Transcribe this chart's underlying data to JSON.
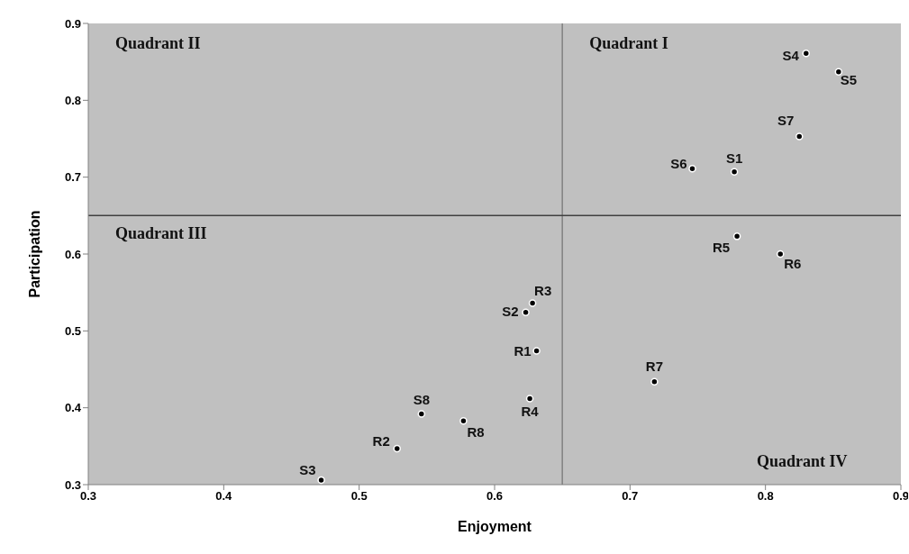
{
  "chart_data": {
    "type": "scatter",
    "xlabel": "Enjoyment",
    "ylabel": "Participation",
    "xlim": [
      0.3,
      0.9
    ],
    "xticks": [
      0.3,
      0.4,
      0.5,
      0.6,
      0.7,
      0.8,
      0.9
    ],
    "ylim": [
      0.3,
      0.9
    ],
    "yticks": [
      0.3,
      0.4,
      0.5,
      0.6,
      0.7,
      0.8,
      0.9
    ],
    "grid": false,
    "legend": false,
    "marker": "circle",
    "series": [
      {
        "color": "#000000",
        "x": [
          0.777,
          0.623,
          0.472,
          0.83,
          0.854,
          0.746,
          0.825,
          0.546,
          0.631,
          0.528,
          0.628,
          0.626,
          0.779,
          0.811,
          0.718,
          0.577
        ],
        "values": [
          0.707,
          0.524,
          0.306,
          0.861,
          0.837,
          0.711,
          0.753,
          0.392,
          0.474,
          0.347,
          0.536,
          0.412,
          0.623,
          0.6,
          0.434,
          0.383
        ],
        "value_labels": [
          "S1",
          "S2",
          "S3",
          "S4",
          "S5",
          "S6",
          "S7",
          "S8",
          "R1",
          "R2",
          "R3",
          "R4",
          "R5",
          "R6",
          "R7",
          "R8"
        ]
      }
    ],
    "ref_lines": [
      {
        "axis": "x",
        "value": 0.65,
        "color": "#808080"
      },
      {
        "axis": "y",
        "value": 0.65,
        "color": "#404040"
      }
    ],
    "annotations": [
      "Quadrant II",
      "Quadrant I",
      "Quadrant III",
      "Quadrant IV"
    ]
  }
}
